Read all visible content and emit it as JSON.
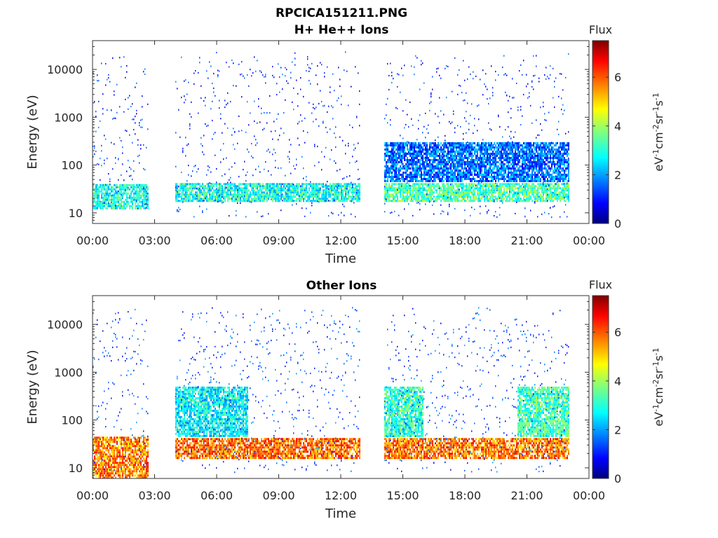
{
  "figure": {
    "title_line1": "RPCICA151211.PNG",
    "title_line2": "H+ He++ Ions"
  },
  "chart_data": [
    {
      "type": "heatmap",
      "title": "H+ He++ Ions",
      "xlabel": "Time",
      "ylabel": "Energy (eV)",
      "x_tick_labels": [
        "00:00",
        "03:00",
        "06:00",
        "09:00",
        "12:00",
        "15:00",
        "18:00",
        "21:00",
        "00:00"
      ],
      "x_ticks_hours": [
        0,
        3,
        6,
        9,
        12,
        15,
        18,
        21,
        24
      ],
      "xlim_hours": [
        0,
        24
      ],
      "y_scale": "log",
      "y_tick_labels": [
        "10",
        "100",
        "1000",
        "10000"
      ],
      "y_ticks": [
        10,
        100,
        1000,
        10000
      ],
      "ylim": [
        6,
        40000
      ],
      "colorbar": {
        "title": "Flux",
        "label": "eV-1cm-2sr-1s-1",
        "ticks": [
          0,
          2,
          4,
          6
        ],
        "range": [
          0,
          7.5
        ],
        "colormap": "jet"
      },
      "data_gaps_hours": [
        [
          2.67,
          4.0
        ],
        [
          12.9,
          14.05
        ]
      ],
      "data_end_hour": 23.0,
      "background_flux_level": 1.0,
      "bands": [
        {
          "t0": 0.0,
          "t1": 2.67,
          "e0": 12,
          "e1": 40,
          "flux": 3.0
        },
        {
          "t0": 4.0,
          "t1": 12.9,
          "e0": 18,
          "e1": 42,
          "flux": 3.0
        },
        {
          "t0": 14.05,
          "t1": 23.0,
          "e0": 18,
          "e1": 42,
          "flux": 3.4
        },
        {
          "t0": 14.05,
          "t1": 23.0,
          "e0": 45,
          "e1": 300,
          "flux": 1.8
        }
      ]
    },
    {
      "type": "heatmap",
      "title": "Other Ions",
      "xlabel": "Time",
      "ylabel": "Energy (eV)",
      "x_tick_labels": [
        "00:00",
        "03:00",
        "06:00",
        "09:00",
        "12:00",
        "15:00",
        "18:00",
        "21:00",
        "00:00"
      ],
      "x_ticks_hours": [
        0,
        3,
        6,
        9,
        12,
        15,
        18,
        21,
        24
      ],
      "xlim_hours": [
        0,
        24
      ],
      "y_scale": "log",
      "y_tick_labels": [
        "10",
        "100",
        "1000",
        "10000"
      ],
      "y_ticks": [
        10,
        100,
        1000,
        10000
      ],
      "ylim": [
        6,
        40000
      ],
      "colorbar": {
        "title": "Flux",
        "label": "eV-1cm-2sr-1s-1",
        "ticks": [
          0,
          2,
          4,
          6
        ],
        "range": [
          0,
          7.5
        ],
        "colormap": "jet"
      },
      "data_gaps_hours": [
        [
          2.67,
          4.0
        ],
        [
          12.9,
          14.05
        ]
      ],
      "data_end_hour": 23.0,
      "background_flux_level": 1.2,
      "bands": [
        {
          "t0": 0.0,
          "t1": 2.67,
          "e0": 6,
          "e1": 45,
          "flux": 5.6
        },
        {
          "t0": 4.0,
          "t1": 12.9,
          "e0": 16,
          "e1": 42,
          "flux": 5.8
        },
        {
          "t0": 14.05,
          "t1": 23.0,
          "e0": 16,
          "e1": 42,
          "flux": 5.7
        },
        {
          "t0": 4.0,
          "t1": 7.5,
          "e0": 45,
          "e1": 500,
          "flux": 2.8
        },
        {
          "t0": 14.05,
          "t1": 16.0,
          "e0": 45,
          "e1": 500,
          "flux": 3.2
        },
        {
          "t0": 20.5,
          "t1": 23.0,
          "e0": 45,
          "e1": 500,
          "flux": 3.3
        }
      ]
    }
  ]
}
